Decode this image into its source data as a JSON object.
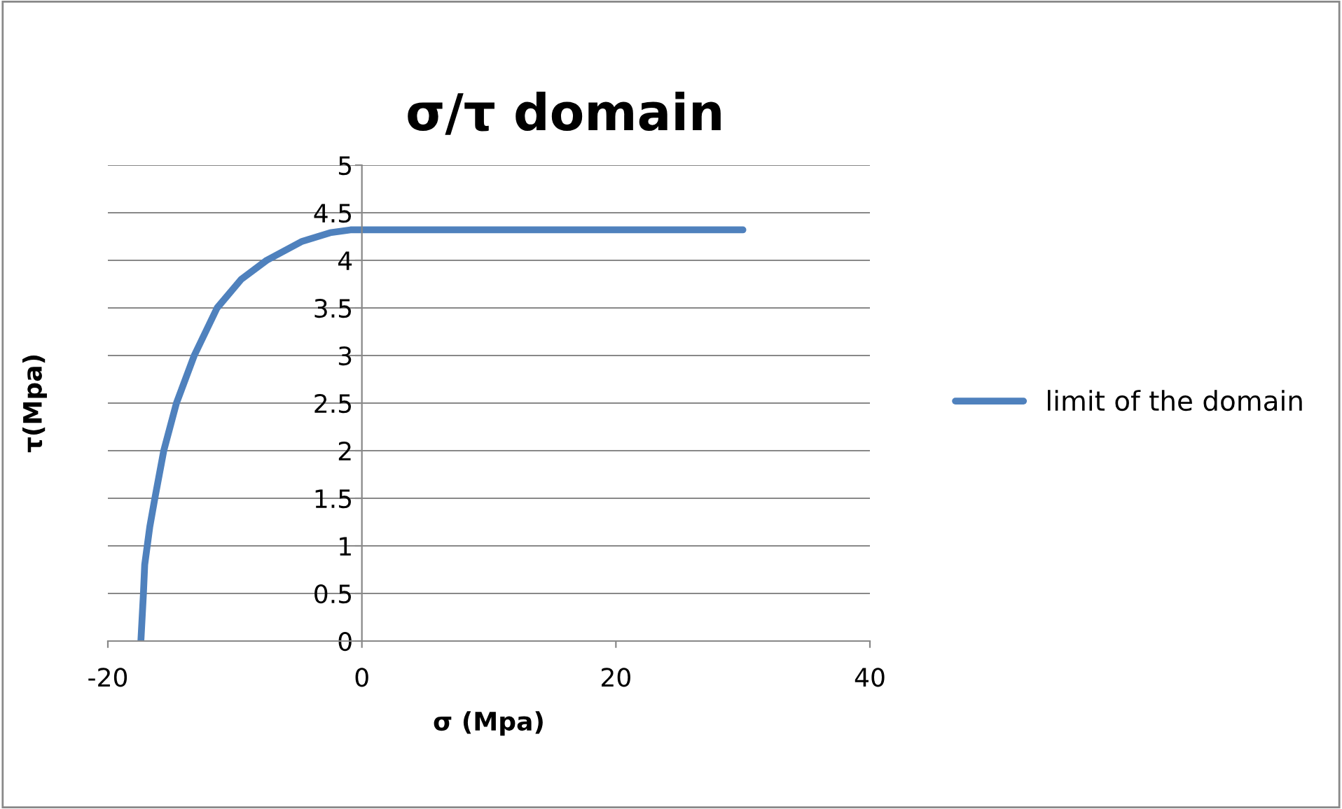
{
  "chart_data": {
    "type": "line",
    "title": "σ/τ domain",
    "xlabel": "σ (Mpa)",
    "ylabel": "τ(Mpa)",
    "x": [
      -17.4,
      -17.2,
      -17.1,
      -16.7,
      -16.3,
      -15.6,
      -14.6,
      -13.2,
      -11.4,
      -9.5,
      -7.5,
      -4.7,
      -2.5,
      -0.9,
      30
    ],
    "series": [
      {
        "name": "limit of the domain",
        "color": "#4f81bd",
        "values": [
          0,
          0.5,
          0.8,
          1.2,
          1.5,
          2,
          2.5,
          3,
          3.5,
          3.8,
          4,
          4.2,
          4.29,
          4.32,
          4.32
        ]
      }
    ],
    "xlim": [
      -20,
      40
    ],
    "xticks": [
      -20,
      0,
      20,
      40
    ],
    "ylim": [
      0,
      5
    ],
    "yticks": [
      0,
      0.5,
      1,
      1.5,
      2,
      2.5,
      3,
      3.5,
      4,
      4.5,
      5
    ],
    "grid": "y",
    "legend": "right",
    "marker": "none",
    "line_style": "solid"
  }
}
